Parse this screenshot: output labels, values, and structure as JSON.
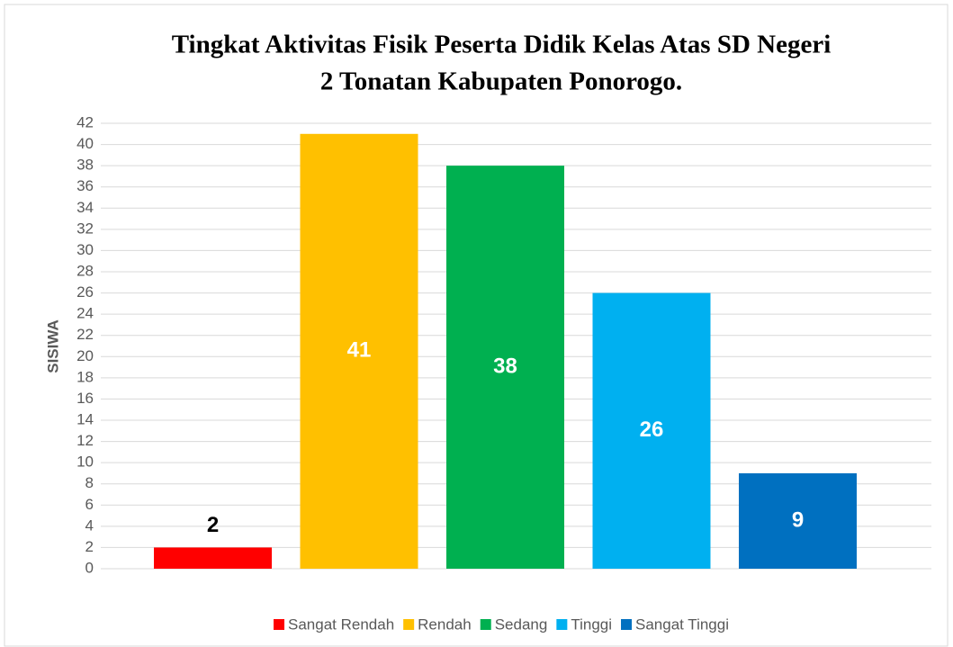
{
  "chart_data": {
    "type": "bar",
    "title": [
      "Tingkat Aktivitas Fisik Peserta Didik Kelas Atas SD Negeri",
      "2 Tonatan Kabupaten Ponorogo."
    ],
    "y_label": "SISIWA",
    "categories": [
      null
    ],
    "series": [
      {
        "name": "Sangat Rendah",
        "color": "#ff0000",
        "values": [
          2
        ]
      },
      {
        "name": "Rendah",
        "color": "#ffc000",
        "values": [
          41
        ]
      },
      {
        "name": "Sedang",
        "color": "#00b050",
        "values": [
          38
        ]
      },
      {
        "name": "Tinggi",
        "color": "#00b0f0",
        "values": [
          26
        ]
      },
      {
        "name": "Sangat Tinggi",
        "color": "#0070c0",
        "values": [
          9
        ]
      }
    ],
    "ylim": [
      0,
      42
    ],
    "yticks": [
      0,
      2,
      4,
      6,
      8,
      10,
      12,
      14,
      16,
      18,
      20,
      22,
      24,
      26,
      28,
      30,
      32,
      34,
      36,
      38,
      40,
      42
    ],
    "grid": true,
    "legend": "bottom"
  }
}
